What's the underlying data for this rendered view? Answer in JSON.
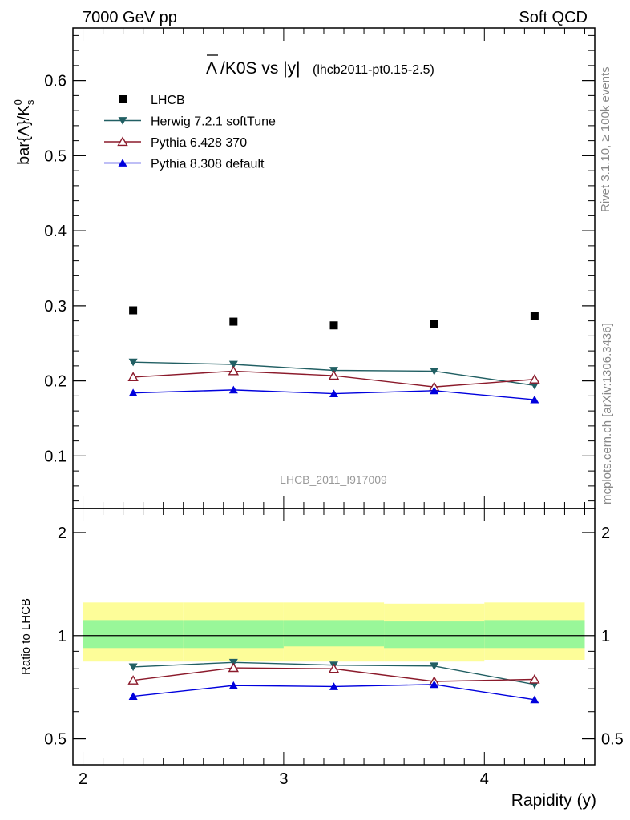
{
  "header": {
    "left": "7000 GeV pp",
    "right": "Soft QCD"
  },
  "title": {
    "main": "/K0S vs |y|",
    "lambda_symbol": "Λ",
    "suffix": "(lhcb2011-pt0.15-2.5)"
  },
  "side_labels": {
    "rivet": "Rivet 3.1.10, ≥ 100k events",
    "mcplots": "mcplots.cern.ch [arXiv:1306.3436]"
  },
  "watermark": "LHCB_2011_I917009",
  "axes": {
    "ylabel_main": "bar{Λ}/K",
    "ylabel_main_sup": "0",
    "ylabel_main_sub": "s",
    "ylabel_ratio": "Ratio to LHCB",
    "xlabel": "Rapidity (y)"
  },
  "colors": {
    "LHCB": "#000000",
    "Herwig": "#215f63",
    "Pythia6": "#8b1a2b",
    "Pythia8": "#0000dd",
    "band_inner": "#99f799",
    "band_outer": "#fdfd99"
  },
  "chart_data": [
    {
      "type": "scatter",
      "panel": "main",
      "x": [
        2.25,
        2.75,
        3.25,
        3.75,
        4.25
      ],
      "xlim": [
        1.95,
        4.55
      ],
      "ylim": [
        0.03,
        0.67
      ],
      "yticks": [
        0.1,
        0.2,
        0.3,
        0.4,
        0.5,
        0.6
      ],
      "ytick_labels": [
        "0.1",
        "0.2",
        "0.3",
        "0.4",
        "0.5",
        "0.6"
      ],
      "legend_placement": "top-left",
      "series": [
        {
          "name": "LHCB",
          "marker": "square",
          "color_key": "LHCB",
          "line": false,
          "values": [
            0.294,
            0.279,
            0.274,
            0.276,
            0.286
          ]
        },
        {
          "name": "Herwig 7.2.1 softTune",
          "marker": "triangle-down",
          "color_key": "Herwig",
          "line": true,
          "values": [
            0.225,
            0.222,
            0.214,
            0.213,
            0.194
          ]
        },
        {
          "name": "Pythia 6.428 370",
          "marker": "triangle-up-open",
          "color_key": "Pythia6",
          "line": true,
          "values": [
            0.205,
            0.213,
            0.207,
            0.192,
            0.202
          ]
        },
        {
          "name": "Pythia 8.308 default",
          "marker": "triangle-up",
          "color_key": "Pythia8",
          "line": true,
          "values": [
            0.184,
            0.188,
            0.183,
            0.187,
            0.175
          ]
        }
      ]
    },
    {
      "type": "line",
      "panel": "ratio",
      "x": [
        2.25,
        2.75,
        3.25,
        3.75,
        4.25
      ],
      "xlim": [
        1.95,
        4.55
      ],
      "ylim": [
        0.42,
        2.35
      ],
      "log_scale_y": true,
      "yticks": [
        0.5,
        1,
        2
      ],
      "ytick_labels": [
        "0.5",
        "1",
        "2"
      ],
      "xticks": [
        2,
        3,
        4
      ],
      "xtick_labels": [
        "2",
        "3",
        "4"
      ],
      "bands": [
        {
          "x_edges": [
            2.0,
            2.5,
            3.0,
            3.5,
            4.0,
            4.5
          ],
          "outer_low": [
            0.84,
            0.84,
            0.84,
            0.84,
            0.85,
            0.84
          ],
          "outer_high": [
            1.25,
            1.25,
            1.25,
            1.24,
            1.25,
            1.26
          ],
          "inner_low": [
            0.92,
            0.92,
            0.93,
            0.92,
            0.92,
            0.92
          ],
          "inner_high": [
            1.11,
            1.11,
            1.11,
            1.1,
            1.11,
            1.11
          ]
        }
      ],
      "series": [
        {
          "name": "Herwig 7.2.1 softTune",
          "marker": "triangle-down",
          "color_key": "Herwig",
          "values": [
            0.81,
            0.835,
            0.82,
            0.815,
            0.72
          ]
        },
        {
          "name": "Pythia 6.428 370",
          "marker": "triangle-up-open",
          "color_key": "Pythia6",
          "values": [
            0.74,
            0.805,
            0.8,
            0.735,
            0.745
          ]
        },
        {
          "name": "Pythia 8.308 default",
          "marker": "triangle-up",
          "color_key": "Pythia8",
          "values": [
            0.665,
            0.715,
            0.71,
            0.72,
            0.65
          ]
        }
      ]
    }
  ]
}
